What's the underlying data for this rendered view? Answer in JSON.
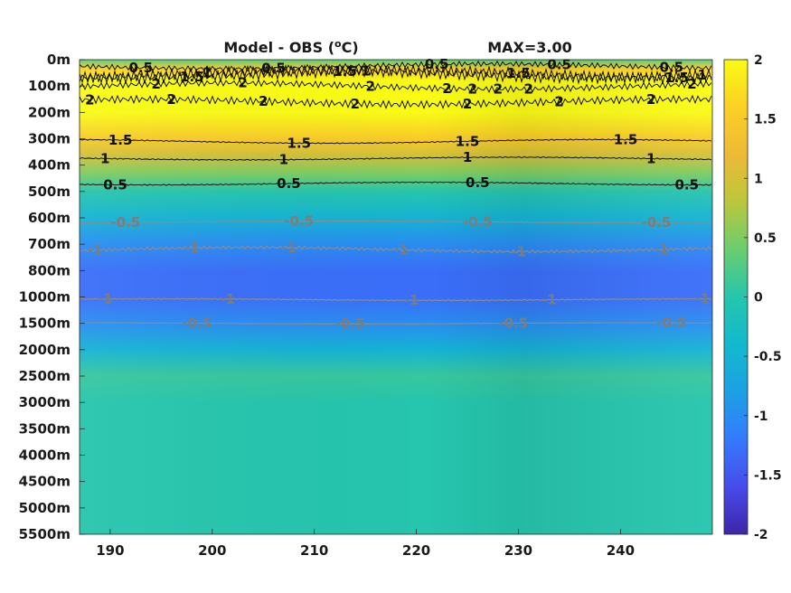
{
  "chart_data": {
    "type": "heatmap",
    "title": "Model - OBS (",
    "title_superscript": "o",
    "title_unit": "C)",
    "max_label": "MAX=3.00",
    "xlabel": "",
    "ylabel": "",
    "x_ticks": [
      "190",
      "200",
      "210",
      "220",
      "230",
      "240"
    ],
    "x_tick_values": [
      190,
      200,
      210,
      220,
      230,
      240
    ],
    "xlim": [
      187,
      249
    ],
    "y_ticks": [
      "0m",
      "100m",
      "200m",
      "300m",
      "400m",
      "500m",
      "600m",
      "700m",
      "800m",
      "1000m",
      "1500m",
      "2000m",
      "2500m",
      "3000m",
      "3500m",
      "4000m",
      "4500m",
      "5000m",
      "5500m"
    ],
    "colorbar": {
      "limits": [
        -2,
        2
      ],
      "ticks": [
        "2",
        "1.5",
        "1",
        "0.5",
        "0",
        "-0.5",
        "-1",
        "-1.5",
        "-2"
      ],
      "tick_values": [
        2,
        1.5,
        1,
        0.5,
        0,
        -0.5,
        -1,
        -1.5,
        -2
      ],
      "colormap": "parula"
    },
    "depth_profile": {
      "depth_index": [
        0,
        0.35,
        0.8,
        1.3,
        2.0,
        3.0,
        3.6,
        4.3,
        5.0,
        6.0,
        7.0,
        8.0,
        9.0,
        10.0,
        11.0,
        12.0,
        13.0,
        18.0
      ],
      "value": [
        0.3,
        1.6,
        2.0,
        2.0,
        2.0,
        1.5,
        1.0,
        0.5,
        0.0,
        -0.5,
        -1.0,
        -1.3,
        -1.3,
        -1.0,
        -0.5,
        0.1,
        0.0,
        0.0
      ]
    },
    "contours": [
      {
        "level": "0.5",
        "labels_x": [
          193,
          206,
          222,
          234,
          245
        ]
      },
      {
        "level": "1.5",
        "labels_x": [
          198,
          213,
          230,
          245.5
        ]
      },
      {
        "level": "1",
        "labels_x": [
          199.5,
          215,
          248
        ]
      },
      {
        "level": "2",
        "labels_x": [
          194.5,
          203,
          215.5,
          223,
          225.5,
          228,
          231,
          247
        ]
      },
      {
        "level": "2",
        "labels_x": [
          188,
          196,
          205,
          214,
          225,
          234,
          243
        ]
      },
      {
        "level": "1.5",
        "labels_x": [
          191,
          208.5,
          225,
          240.5
        ]
      },
      {
        "level": "1",
        "labels_x": [
          189.5,
          207,
          225,
          243
        ]
      },
      {
        "level": "0.5",
        "labels_x": [
          190.5,
          207.5,
          226,
          246.5
        ]
      },
      {
        "level": "-0.5",
        "labels_x": [
          191.5,
          208.5,
          226,
          243.5
        ]
      },
      {
        "level": "-1",
        "labels_x": [
          188.5,
          198,
          207.5,
          218.5,
          230,
          244
        ]
      },
      {
        "level": "-1",
        "labels_x": [
          189.5,
          201.5,
          219.5,
          233,
          248
        ]
      },
      {
        "level": "-0.5",
        "labels_x": [
          198.5,
          213.5,
          229.5,
          245
        ]
      }
    ]
  },
  "colors": {
    "positive_contour": "#000000",
    "negative_contour": "#8c8c8c",
    "axis": "#262626"
  }
}
